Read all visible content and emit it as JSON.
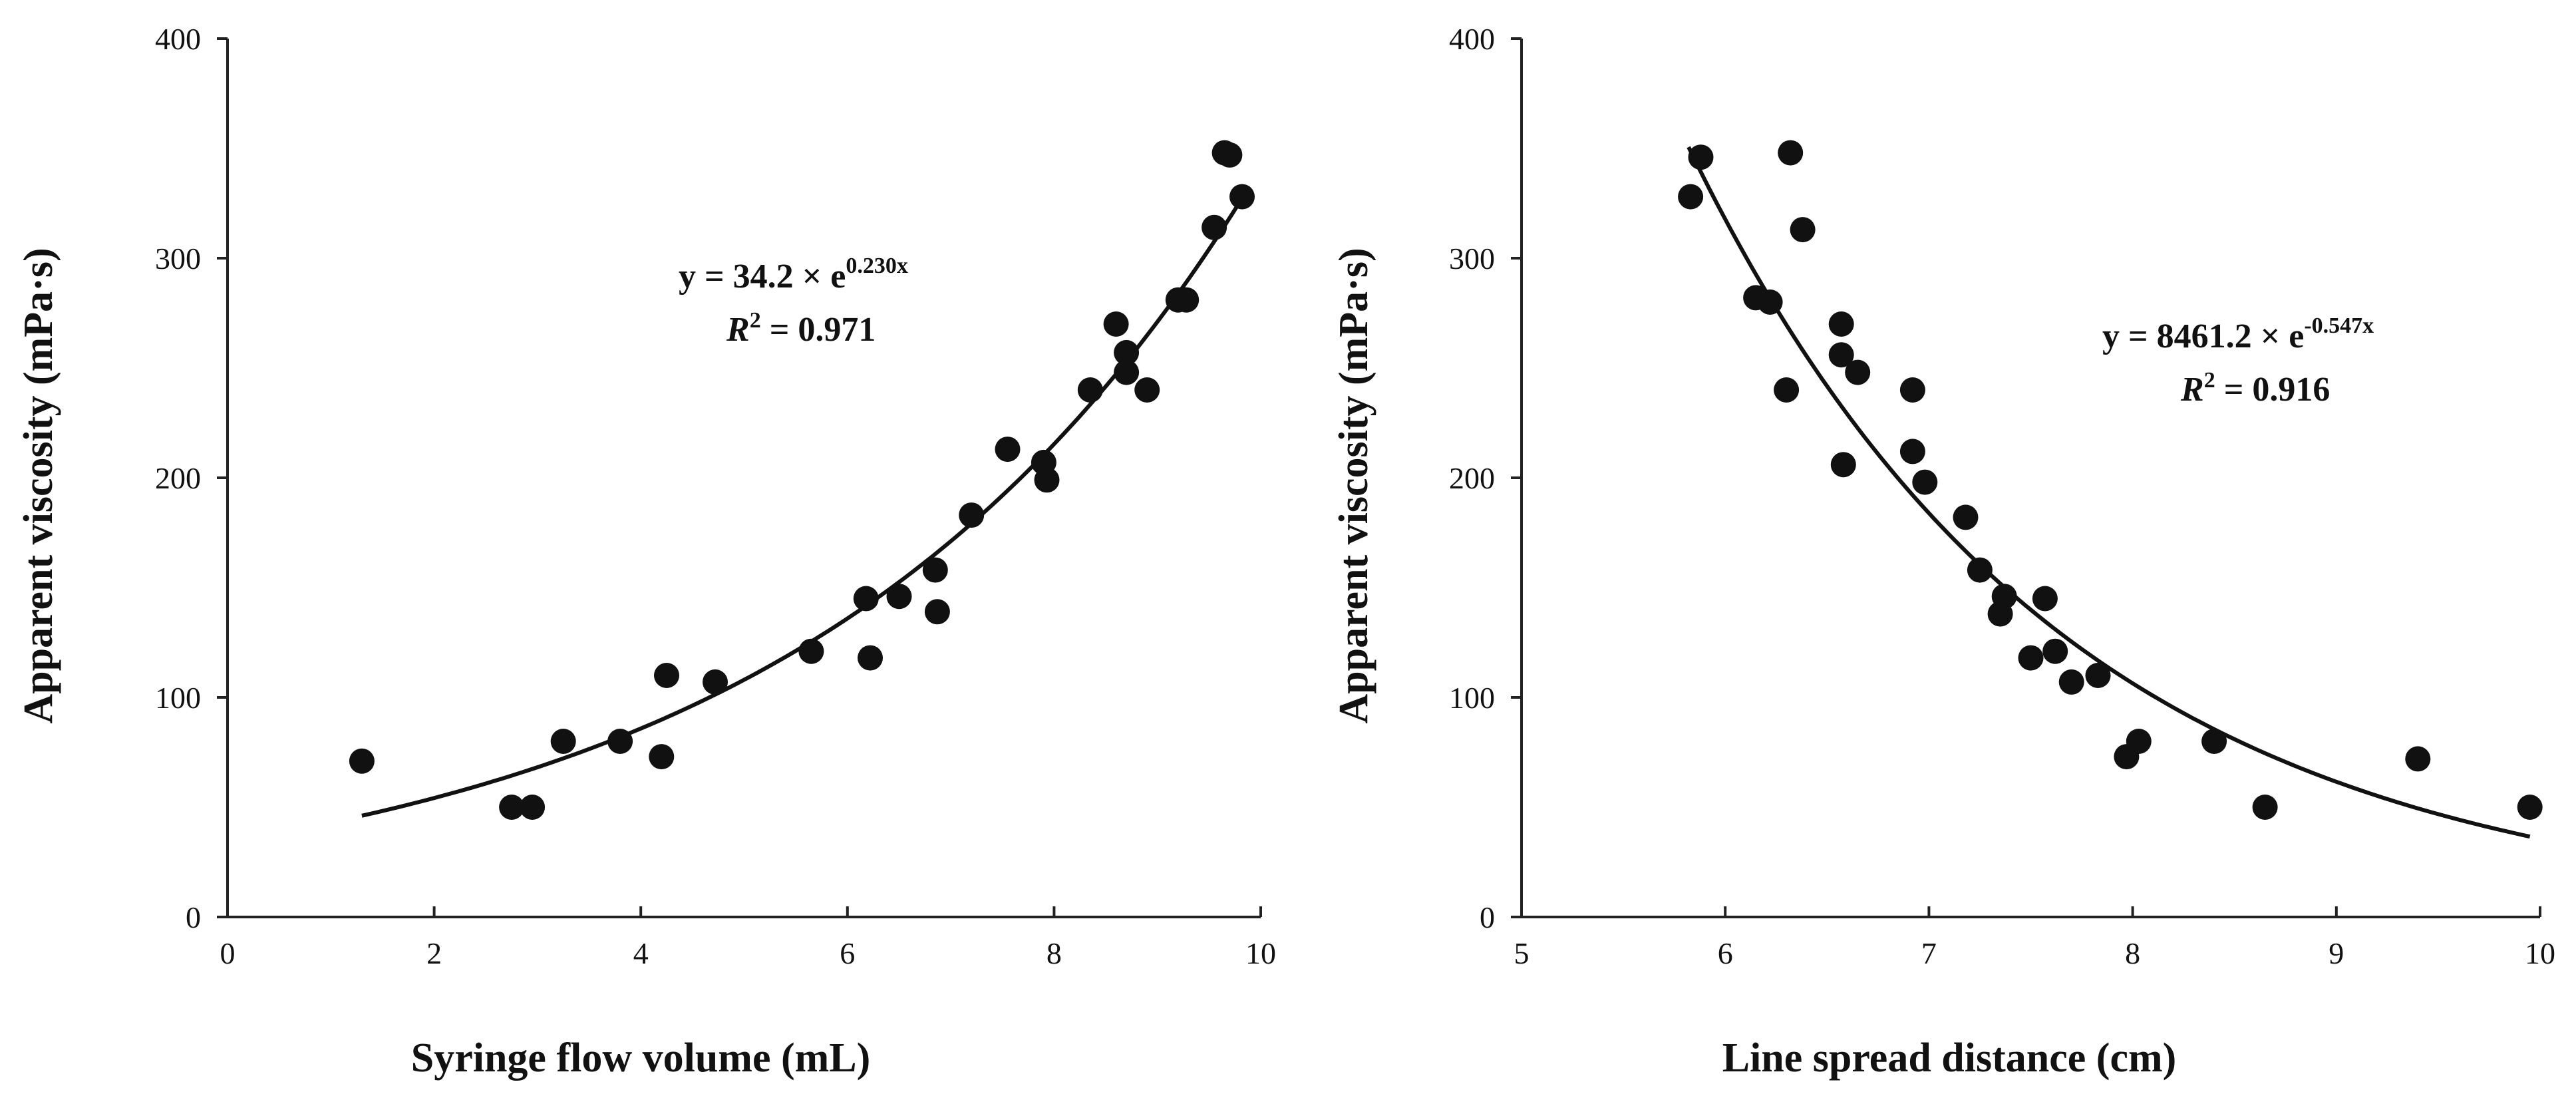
{
  "chart_data": [
    {
      "type": "scatter",
      "xlabel": "Syringe flow volume (mL)",
      "ylabel": "Apparent viscosity (mPa·s)",
      "xlim": [
        0,
        10
      ],
      "ylim": [
        0,
        400
      ],
      "xticks": [
        "0",
        "2",
        "4",
        "6",
        "8",
        "10"
      ],
      "yticks": [
        "0",
        "100",
        "200",
        "300",
        "400"
      ],
      "grid": false,
      "equation": {
        "prefix": "y = 34.2 × e",
        "exponent": "0.230x",
        "r2_symbol": "R",
        "r2_sup": "2",
        "r2_value": " = 0.971"
      },
      "fit": {
        "form": "y = a*exp(b*x)",
        "a": 34.2,
        "b": 0.23,
        "x_range": [
          1.3,
          9.8
        ]
      },
      "series": [
        {
          "name": "data",
          "x": [
            1.3,
            2.75,
            2.95,
            3.25,
            3.8,
            4.2,
            4.25,
            4.72,
            5.65,
            6.18,
            6.22,
            6.5,
            6.85,
            6.87,
            7.2,
            7.55,
            7.9,
            7.93,
            8.35,
            8.6,
            8.7,
            8.7,
            8.9,
            9.2,
            9.28,
            9.55,
            9.65,
            9.7,
            9.82
          ],
          "y": [
            71,
            50,
            50,
            80,
            80,
            73,
            110,
            107,
            121,
            145,
            118,
            146,
            158,
            139,
            183,
            213,
            207,
            199,
            240,
            270,
            257,
            248,
            240,
            281,
            281,
            314,
            348,
            347,
            328
          ]
        }
      ]
    },
    {
      "type": "scatter",
      "xlabel": "Line spread distance (cm)",
      "ylabel": "Apparent viscosity (mPa·s)",
      "xlim": [
        5,
        10
      ],
      "ylim": [
        0,
        400
      ],
      "xticks": [
        "5",
        "6",
        "7",
        "8",
        "9",
        "10"
      ],
      "yticks": [
        "0",
        "100",
        "200",
        "300",
        "400"
      ],
      "grid": false,
      "equation": {
        "prefix": "y = 8461.2 × e",
        "exponent": "-0.547x",
        "r2_symbol": "R",
        "r2_sup": "2",
        "r2_value": " = 0.916"
      },
      "fit": {
        "form": "y = a*exp(b*x)",
        "a": 8461.2,
        "b": -0.547,
        "x_range": [
          5.82,
          9.95
        ]
      },
      "series": [
        {
          "name": "data",
          "x": [
            5.83,
            5.88,
            6.15,
            6.22,
            6.3,
            6.32,
            6.38,
            6.57,
            6.57,
            6.58,
            6.65,
            6.92,
            6.92,
            6.98,
            7.18,
            7.25,
            7.35,
            7.37,
            7.5,
            7.57,
            7.62,
            7.7,
            7.83,
            7.97,
            8.03,
            8.4,
            8.65,
            9.4,
            9.95
          ],
          "y": [
            328,
            346,
            282,
            280,
            240,
            348,
            313,
            270,
            256,
            206,
            248,
            240,
            212,
            198,
            182,
            158,
            138,
            146,
            118,
            145,
            121,
            107,
            110,
            73,
            80,
            80,
            50,
            72,
            50
          ]
        }
      ]
    }
  ]
}
